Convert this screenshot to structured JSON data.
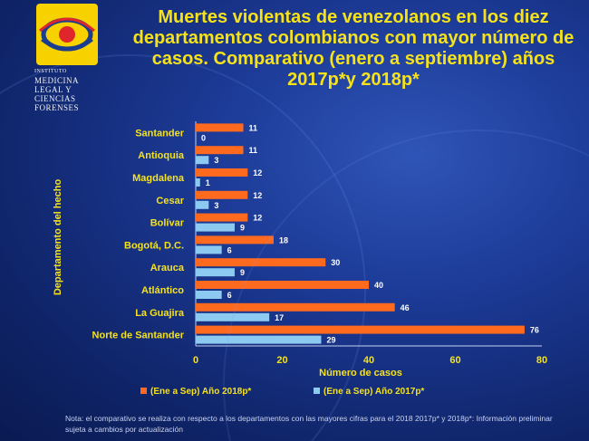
{
  "logo": {
    "text_lines": [
      "INSTITUTO",
      "MEDICINA",
      "LEGAL Y",
      "CIENCIAS",
      "FORENSES"
    ],
    "colors": {
      "badge": "#f7d200",
      "red": "#e0262a",
      "blue": "#1a3d8f"
    }
  },
  "footnote": "Nota: el comparativo se realiza con respecto a los departamentos con las mayores cifras para el 2018 2017p* y 2018p*: Información preliminar sujeta a cambios por actualización",
  "colors": {
    "series_2018": "#ff6a1f",
    "series_2017": "#8ccaf2",
    "title": "#f5e21b",
    "labels": "#f5e21b",
    "axis_lines": "#c5d0f0"
  },
  "chart_data": {
    "type": "bar",
    "orientation": "horizontal",
    "title": "Muertes violentas de venezolanos en los diez departamentos colombianos con mayor número de casos. Comparativo (enero a septiembre) años 2017p*y 2018p*",
    "xlabel": "Número de casos",
    "ylabel": "Departamento del hecho",
    "categories": [
      "Santander",
      "Antioquia",
      "Magdalena",
      "Cesar",
      "Bolívar",
      "Bogotá, D.C.",
      "Arauca",
      "Atlántico",
      "La Guajira",
      "Norte de Santander"
    ],
    "series": [
      {
        "name": "(Ene a Sep) Año 2018p*",
        "values": [
          11,
          11,
          12,
          12,
          12,
          18,
          30,
          40,
          46,
          76
        ]
      },
      {
        "name": "(Ene a Sep) Año 2017p*",
        "values": [
          0,
          3,
          1,
          3,
          9,
          6,
          9,
          6,
          17,
          29
        ]
      }
    ],
    "xlim": [
      0,
      80
    ],
    "xticks": [
      0,
      20,
      40,
      60,
      80
    ],
    "grid": false,
    "legend_position": "bottom",
    "data_labels": true
  }
}
